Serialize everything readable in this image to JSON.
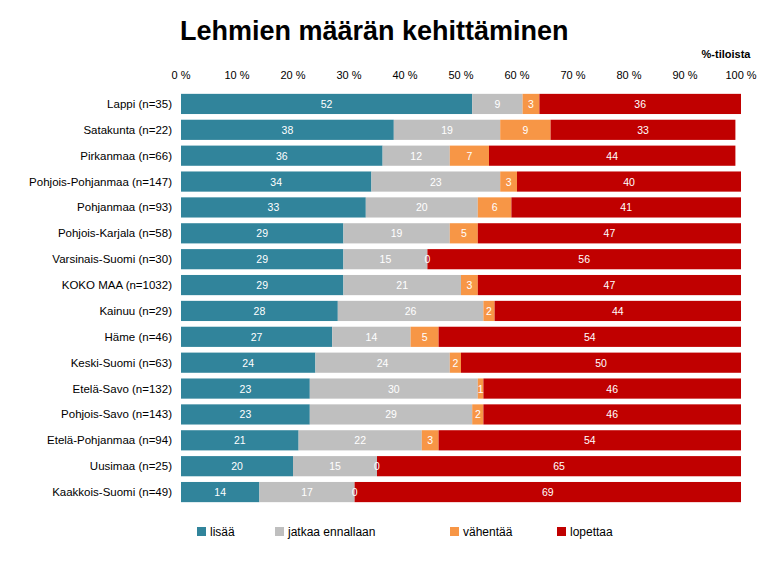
{
  "chart_data": {
    "type": "bar",
    "title": "Lehmien määrän kehittäminen",
    "x_label": "%-tiloista",
    "orientation": "horizontal",
    "stacked": true,
    "data_labels": true,
    "legend": "bottom",
    "xlim": [
      0,
      100
    ],
    "xticks": [
      {
        "value": 0,
        "label": "0 %"
      },
      {
        "value": 10,
        "label": "10 %"
      },
      {
        "value": 20,
        "label": "20 %"
      },
      {
        "value": 30,
        "label": "30 %"
      },
      {
        "value": 40,
        "label": "40 %"
      },
      {
        "value": 50,
        "label": "50 %"
      },
      {
        "value": 60,
        "label": "60 %"
      },
      {
        "value": 70,
        "label": "70 %"
      },
      {
        "value": 80,
        "label": "80 %"
      },
      {
        "value": 90,
        "label": "90 %"
      },
      {
        "value": 100,
        "label": "100 %"
      }
    ],
    "categories": [
      "Lappi (n=35)",
      "Satakunta (n=22)",
      "Pirkanmaa (n=66)",
      "Pohjois-Pohjanmaa (n=147)",
      "Pohjanmaa (n=93)",
      "Pohjois-Karjala (n=58)",
      "Varsinais-Suomi (n=30)",
      "KOKO MAA (n=1032)",
      "Kainuu (n=29)",
      "Häme (n=46)",
      "Keski-Suomi (n=63)",
      "Etelä-Savo (n=132)",
      "Pohjois-Savo (n=143)",
      "Etelä-Pohjanmaa (n=94)",
      "Uusimaa (n=25)",
      "Kaakkois-Suomi (n=49)"
    ],
    "series": [
      {
        "name": "lisää",
        "color": "#31849b",
        "values": [
          52,
          38,
          36,
          34,
          33,
          29,
          29,
          29,
          28,
          27,
          24,
          23,
          23,
          21,
          20,
          14
        ]
      },
      {
        "name": "jatkaa ennallaan",
        "color": "#bfbfbf",
        "values": [
          9,
          19,
          12,
          23,
          20,
          19,
          15,
          21,
          26,
          14,
          24,
          30,
          29,
          22,
          15,
          17
        ]
      },
      {
        "name": "vähentää",
        "color": "#f79646",
        "values": [
          3,
          9,
          7,
          3,
          6,
          5,
          0,
          3,
          2,
          5,
          2,
          1,
          2,
          3,
          0,
          0
        ]
      },
      {
        "name": "lopettaa",
        "color": "#c00000",
        "values": [
          36,
          33,
          44,
          40,
          41,
          47,
          56,
          47,
          44,
          54,
          50,
          46,
          46,
          54,
          65,
          69
        ]
      }
    ]
  }
}
